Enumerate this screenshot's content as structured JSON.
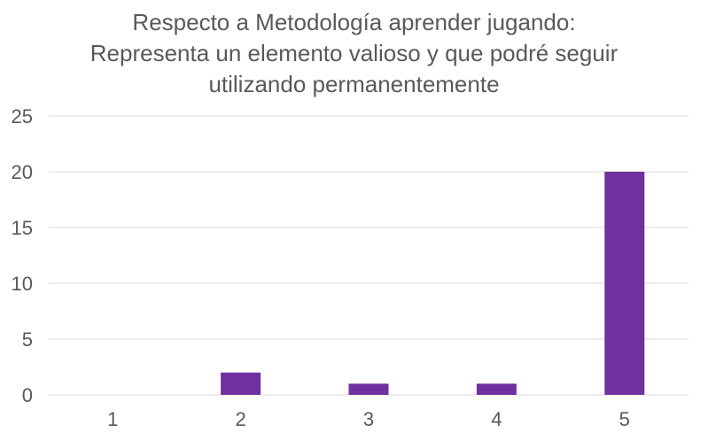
{
  "chart_data": {
    "type": "bar",
    "title_lines": [
      "Respecto a Metodología aprender jugando:",
      "Representa un elemento valioso y que podré seguir",
      "utilizando permanentemente"
    ],
    "categories": [
      "1",
      "2",
      "3",
      "4",
      "5"
    ],
    "values": [
      0,
      2,
      1,
      1,
      20
    ],
    "ylim": [
      0,
      25
    ],
    "yticks": [
      "0",
      "5",
      "10",
      "15",
      "20",
      "25"
    ],
    "grid": true,
    "legend": "none",
    "bar_color": "#7030a0",
    "grid_color": "#d9d9d9"
  }
}
